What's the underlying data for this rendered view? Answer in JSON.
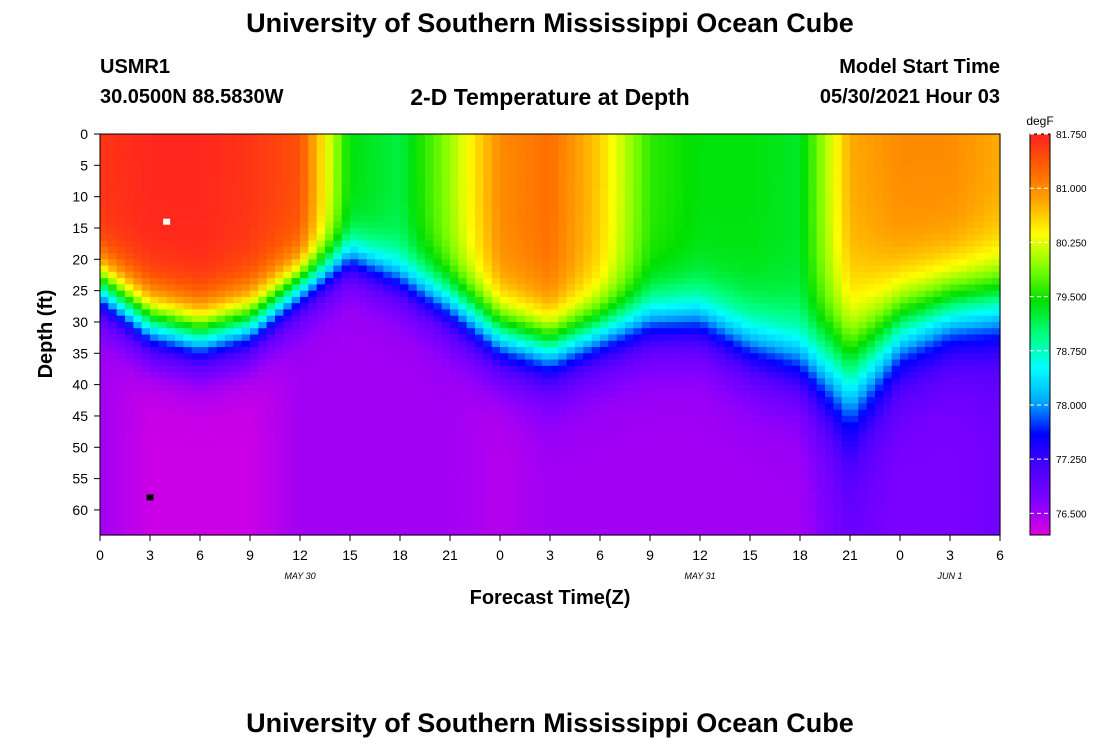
{
  "header": {
    "title": "University of Southern Mississippi Ocean Cube",
    "station": "USMR1",
    "coords": "30.0500N  88.5830W",
    "plot_title": "2-D Temperature at Depth",
    "model_label": "Model Start Time",
    "model_time": "05/30/2021 Hour 03"
  },
  "footer": {
    "title": "University of Southern Mississippi Ocean Cube"
  },
  "colors": {
    "scale": [
      "#e000e0",
      "#8000ff",
      "#4b00ff",
      "#0000ff",
      "#00aaff",
      "#00ffff",
      "#00ff80",
      "#00e000",
      "#80ff00",
      "#ffff00",
      "#ffa500",
      "#ff6000",
      "#ff2020"
    ]
  },
  "chart_data": {
    "type": "heatmap",
    "title": "2-D Temperature at Depth",
    "xlabel": "Forecast Time(Z)",
    "ylabel": "Depth (ft)",
    "x_hours": [
      0,
      3,
      6,
      9,
      12,
      15,
      18,
      21,
      24,
      27,
      30,
      33,
      36,
      39,
      42,
      45,
      48,
      51,
      54
    ],
    "x_tick_labels": [
      "0",
      "3",
      "6",
      "9",
      "12",
      "15",
      "18",
      "21",
      "0",
      "3",
      "6",
      "9",
      "12",
      "15",
      "18",
      "21",
      "0",
      "3",
      "6"
    ],
    "date_labels": [
      {
        "text": "MAY 30",
        "hour": 12
      },
      {
        "text": "MAY 31",
        "hour": 36
      },
      {
        "text": "JUN 1",
        "hour": 51
      }
    ],
    "y_ticks": [
      0,
      5,
      10,
      15,
      20,
      25,
      30,
      35,
      40,
      45,
      50,
      55,
      60
    ],
    "ylim": [
      0,
      64
    ],
    "xlim": [
      0,
      54
    ],
    "colorbar": {
      "unit": "degF",
      "min": 76.2,
      "max": 81.75,
      "ticks": [
        "81.750",
        "81.000",
        "80.250",
        "79.500",
        "78.750",
        "78.000",
        "77.250",
        "76.500"
      ]
    },
    "markers": [
      {
        "name": "max-marker",
        "hour": 4,
        "depth": 14,
        "color": "#ffffff"
      },
      {
        "name": "min-marker",
        "hour": 3,
        "depth": 58,
        "color": "#000000"
      }
    ],
    "columns": [
      {
        "hour": 0,
        "sst": 81.6,
        "mld": 18,
        "thick": 12,
        "bottom": 76.5
      },
      {
        "hour": 3,
        "sst": 81.7,
        "mld": 23,
        "thick": 14,
        "bottom": 76.3
      },
      {
        "hour": 6,
        "sst": 81.7,
        "mld": 25,
        "thick": 14,
        "bottom": 76.3
      },
      {
        "hour": 9,
        "sst": 81.6,
        "mld": 23,
        "thick": 14,
        "bottom": 76.3
      },
      {
        "hour": 12,
        "sst": 81.4,
        "mld": 18,
        "thick": 12,
        "bottom": 76.5
      },
      {
        "hour": 15,
        "sst": 79.4,
        "mld": 14,
        "thick": 11,
        "bottom": 76.5
      },
      {
        "hour": 18,
        "sst": 79.2,
        "mld": 17,
        "thick": 12,
        "bottom": 76.5
      },
      {
        "hour": 21,
        "sst": 80.0,
        "mld": 20,
        "thick": 14,
        "bottom": 76.5
      },
      {
        "hour": 24,
        "sst": 81.0,
        "mld": 24,
        "thick": 16,
        "bottom": 76.4
      },
      {
        "hour": 27,
        "sst": 81.2,
        "mld": 26,
        "thick": 16,
        "bottom": 76.5
      },
      {
        "hour": 30,
        "sst": 80.6,
        "mld": 24,
        "thick": 15,
        "bottom": 76.5
      },
      {
        "hour": 33,
        "sst": 79.6,
        "mld": 22,
        "thick": 15,
        "bottom": 76.5
      },
      {
        "hour": 36,
        "sst": 79.4,
        "mld": 22,
        "thick": 15,
        "bottom": 76.5
      },
      {
        "hour": 39,
        "sst": 79.4,
        "mld": 25,
        "thick": 17,
        "bottom": 76.5
      },
      {
        "hour": 42,
        "sst": 79.3,
        "mld": 27,
        "thick": 18,
        "bottom": 76.5
      },
      {
        "hour": 45,
        "sst": 80.8,
        "mld": 24,
        "thick": 30,
        "bottom": 76.8
      },
      {
        "hour": 48,
        "sst": 81.0,
        "mld": 20,
        "thick": 22,
        "bottom": 76.7
      },
      {
        "hour": 51,
        "sst": 81.0,
        "mld": 18,
        "thick": 20,
        "bottom": 76.7
      },
      {
        "hour": 54,
        "sst": 80.8,
        "mld": 17,
        "thick": 20,
        "bottom": 76.8
      }
    ]
  }
}
